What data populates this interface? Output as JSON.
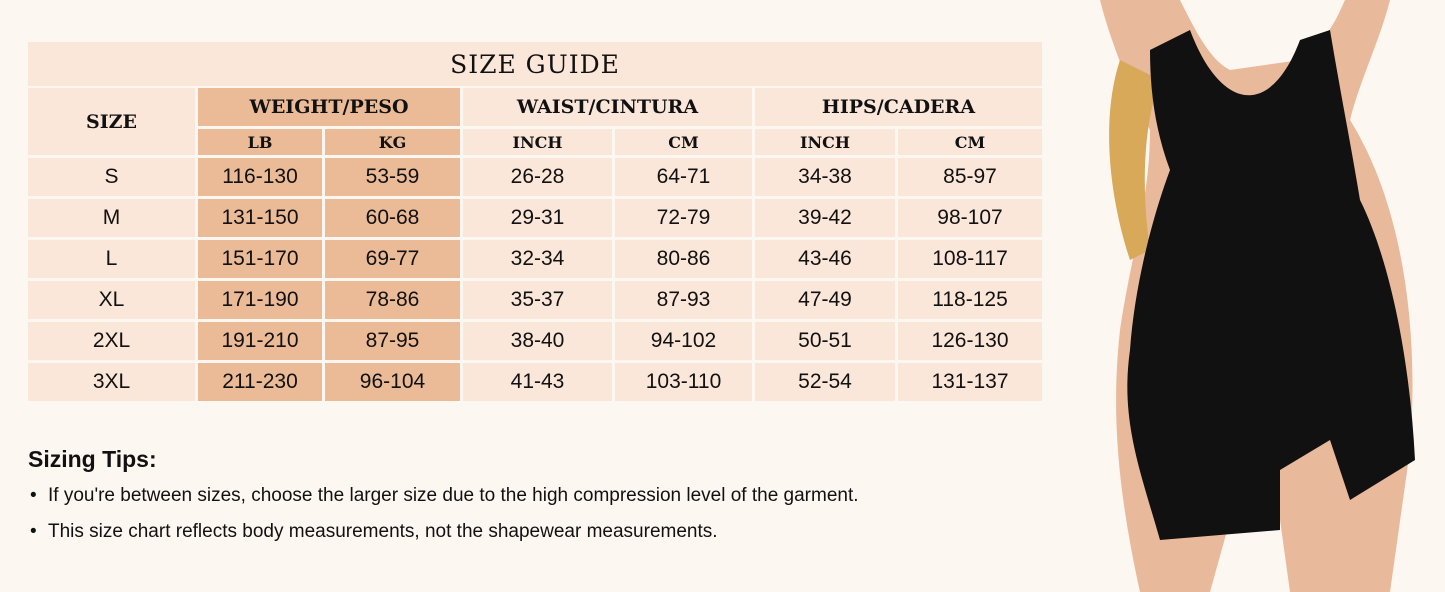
{
  "title": "SIZE GUIDE",
  "headers": {
    "size": "SIZE",
    "weight": "WEIGHT/PESO",
    "waist": "WAIST/CINTURA",
    "hips": "HIPS/CADERA"
  },
  "subheaders": [
    "LB",
    "KG",
    "INCH",
    "CM",
    "INCH",
    "CM"
  ],
  "rows": [
    [
      "S",
      "116-130",
      "53-59",
      "26-28",
      "64-71",
      "34-38",
      "85-97"
    ],
    [
      "M",
      "131-150",
      "60-68",
      "29-31",
      "72-79",
      "39-42",
      "98-107"
    ],
    [
      "L",
      "151-170",
      "69-77",
      "32-34",
      "80-86",
      "43-46",
      "108-117"
    ],
    [
      "XL",
      "171-190",
      "78-86",
      "35-37",
      "87-93",
      "47-49",
      "118-125"
    ],
    [
      "2XL",
      "191-210",
      "87-95",
      "38-40",
      "94-102",
      "50-51",
      "126-130"
    ],
    [
      "3XL",
      "211-230",
      "96-104",
      "41-43",
      "103-110",
      "52-54",
      "131-137"
    ]
  ],
  "tips": {
    "heading": "Sizing Tips:",
    "bullet": "•",
    "items": [
      "If you're between sizes, choose the larger size due to the high compression level of the garment.",
      "This size chart reflects body measurements, not the shapewear measurements."
    ]
  },
  "colors": {
    "background": "#fdf7f2",
    "cell": "#fbe6da",
    "weight_cell": "#ebbb97",
    "garment": "#111111"
  }
}
